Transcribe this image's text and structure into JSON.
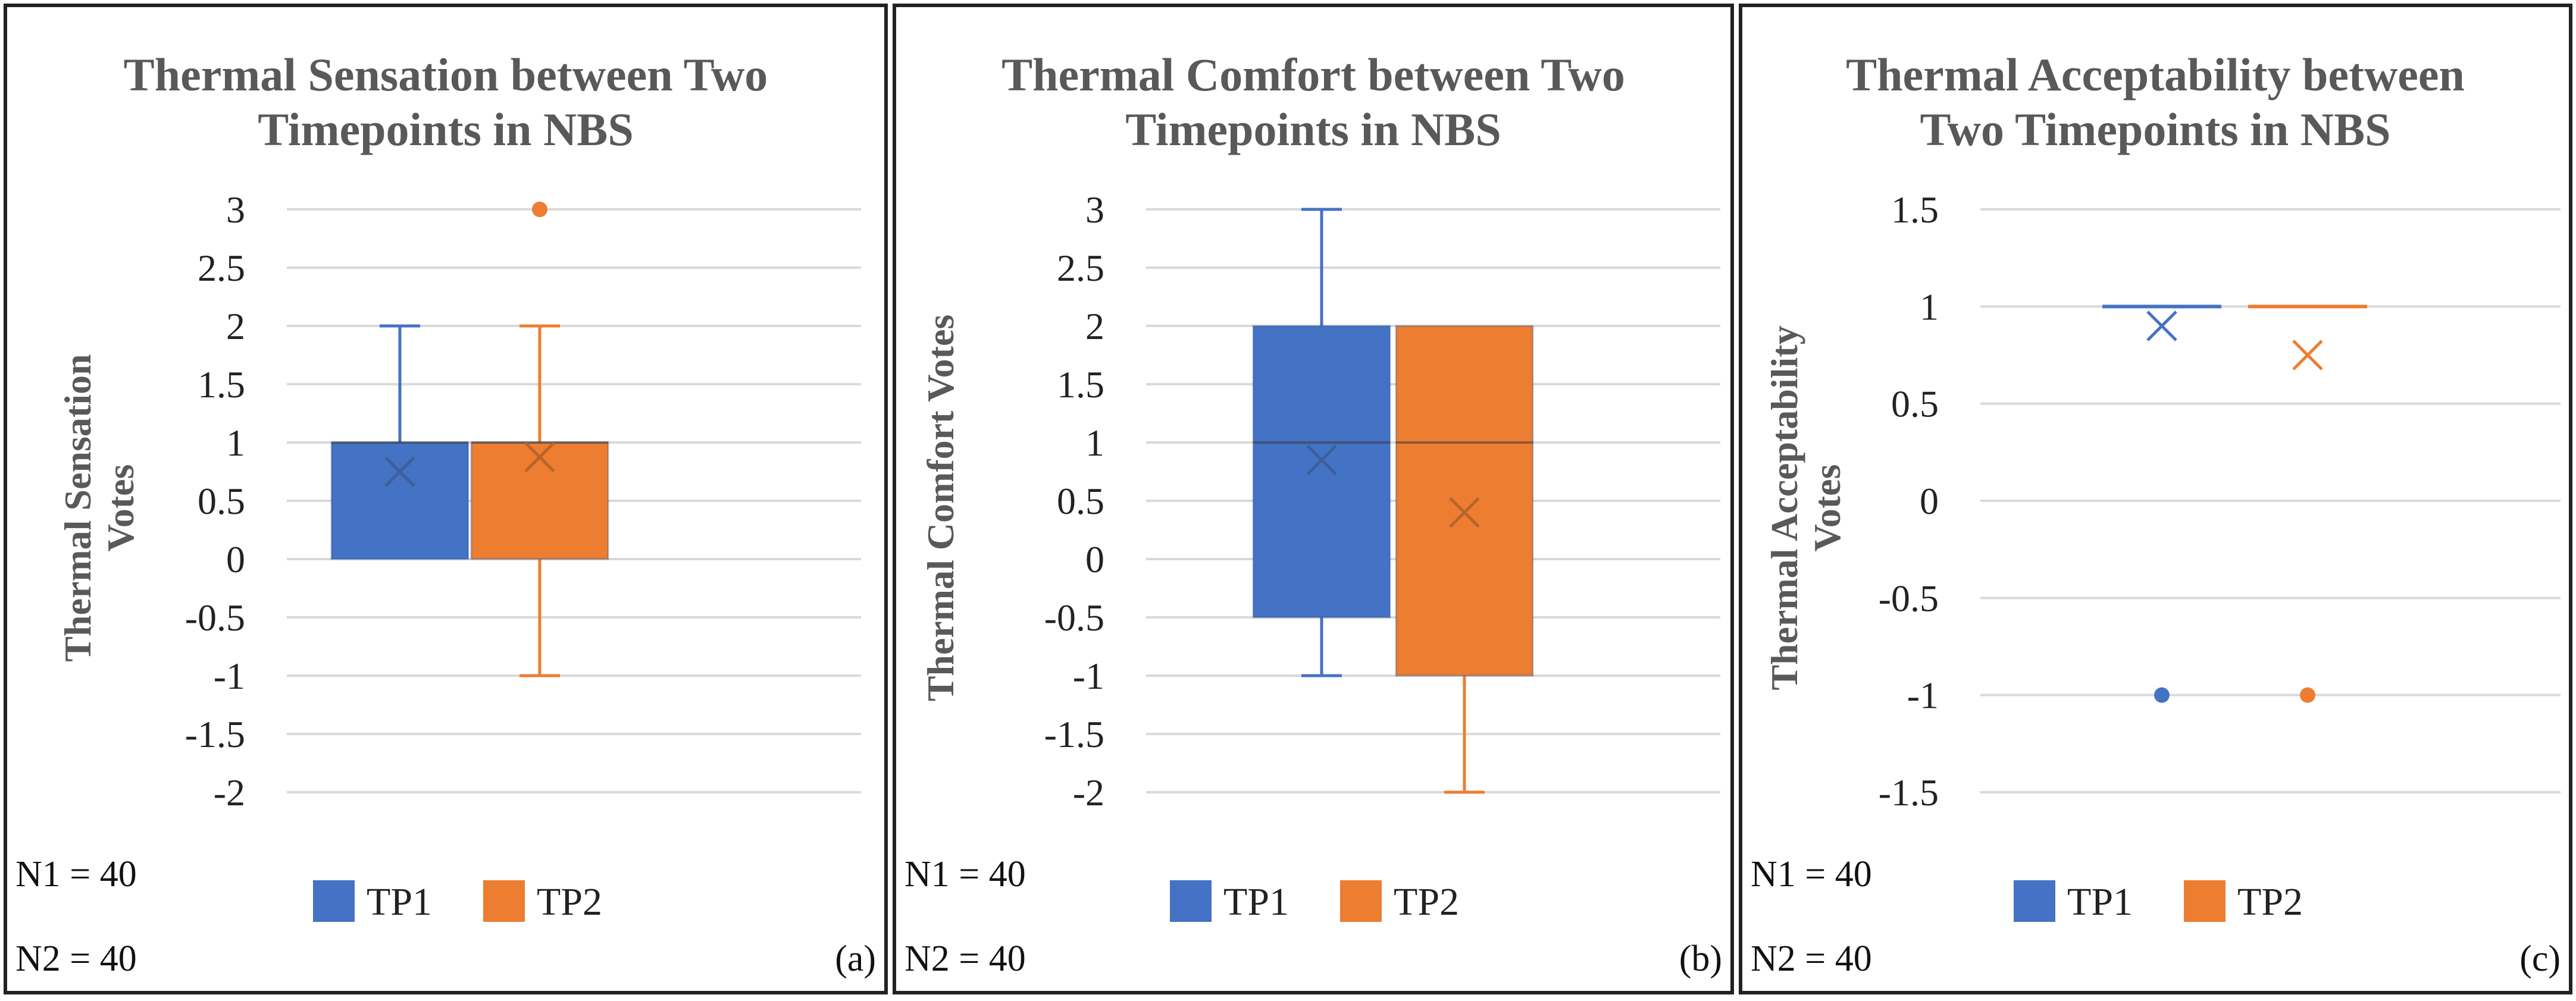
{
  "colors": {
    "tp1": "#4472c4",
    "tp2": "#ed7d31",
    "grid": "#d9d9d9",
    "text": "#595959"
  },
  "chart_data": [
    {
      "type": "box",
      "panel_label": "(a)",
      "title": [
        "Thermal Sensation between Two",
        "Timepoints in NBS"
      ],
      "ylabel": [
        "Thermal Sensation",
        "Votes"
      ],
      "ylim": [
        -2,
        3
      ],
      "ytick_step": 0.5,
      "yticks": [
        "3",
        "2.5",
        "2",
        "1.5",
        "1",
        "0.5",
        "0",
        "-0.5",
        "-1",
        "-1.5",
        "-2"
      ],
      "legend": [
        "TP1",
        "TP2"
      ],
      "notes": [
        "N1 = 40",
        "N2 = 40"
      ],
      "series": [
        {
          "name": "TP1",
          "whisker_low": 0,
          "q1": 0,
          "median": 1,
          "q3": 1,
          "whisker_high": 2,
          "mean": 0.75,
          "outliers": []
        },
        {
          "name": "TP2",
          "whisker_low": -1,
          "q1": 0,
          "median": 1,
          "q3": 1,
          "whisker_high": 2,
          "mean": 0.875,
          "outliers": [
            3
          ]
        }
      ]
    },
    {
      "type": "box",
      "panel_label": "(b)",
      "title": [
        "Thermal Comfort between Two",
        "Timepoints in NBS"
      ],
      "ylabel": [
        "Thermal Comfort Votes"
      ],
      "ylim": [
        -2,
        3
      ],
      "ytick_step": 0.5,
      "yticks": [
        "3",
        "2.5",
        "2",
        "1.5",
        "1",
        "0.5",
        "0",
        "-0.5",
        "-1",
        "-1.5",
        "-2"
      ],
      "legend": [
        "TP1",
        "TP2"
      ],
      "notes": [
        "N1 = 40",
        "N2 = 40"
      ],
      "series": [
        {
          "name": "TP1",
          "whisker_low": -1,
          "q1": -0.5,
          "median": 1,
          "q3": 2,
          "whisker_high": 3,
          "mean": 0.85,
          "outliers": []
        },
        {
          "name": "TP2",
          "whisker_low": -2,
          "q1": -1,
          "median": 1,
          "q3": 2,
          "whisker_high": 2,
          "mean": 0.4,
          "outliers": []
        }
      ]
    },
    {
      "type": "box",
      "panel_label": "(c)",
      "title": [
        "Thermal Acceptability between",
        "Two Timepoints in NBS"
      ],
      "ylabel": [
        "Thermal Acceptability",
        "Votes"
      ],
      "ylim": [
        -1.5,
        1.5
      ],
      "ytick_step": 0.5,
      "yticks": [
        "1.5",
        "1",
        "0.5",
        "0",
        "-0.5",
        "-1",
        "-1.5"
      ],
      "legend": [
        "TP1",
        "TP2"
      ],
      "notes": [
        "N1 = 40",
        "N2 = 40"
      ],
      "series": [
        {
          "name": "TP1",
          "whisker_low": 1,
          "q1": 1,
          "median": 1,
          "q3": 1,
          "whisker_high": 1,
          "mean": 0.9,
          "outliers": [
            -1
          ]
        },
        {
          "name": "TP2",
          "whisker_low": 1,
          "q1": 1,
          "median": 1,
          "q3": 1,
          "whisker_high": 1,
          "mean": 0.75,
          "outliers": [
            -1
          ]
        }
      ]
    }
  ]
}
